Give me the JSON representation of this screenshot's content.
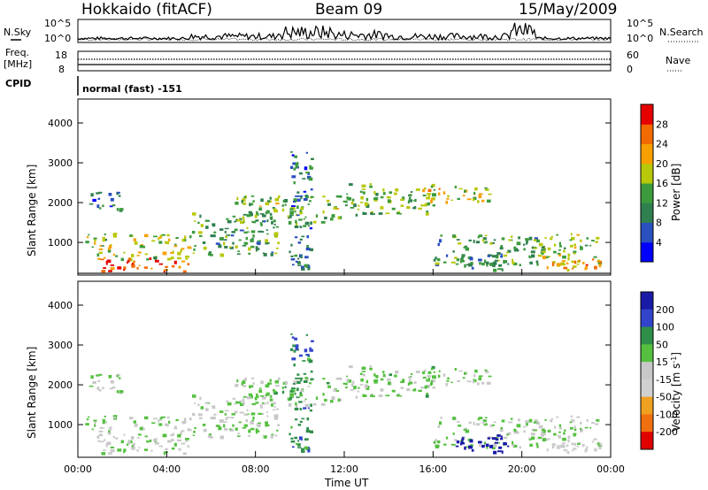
{
  "header": {
    "station": "Hokkaido (fitACF)",
    "beam": "Beam 09",
    "date": "15/May/2009"
  },
  "noise_panel": {
    "left_label": "N.Sky",
    "right_label": "N.Search",
    "left_ticks": [
      "10^5",
      "10^0"
    ],
    "right_ticks": [
      "10^5",
      "10^0"
    ]
  },
  "freq_panel": {
    "left_label_1": "Freq.",
    "left_label_2": "[MHz]",
    "left_ticks": [
      "18",
      "8"
    ],
    "right_ticks": [
      "60",
      "0"
    ],
    "right_label": "Nave"
  },
  "cpid_panel": {
    "label": "CPID",
    "mode": "normal (fast) -151"
  },
  "time_axis": {
    "label": "Time UT",
    "ticks": [
      "00:00",
      "04:00",
      "08:00",
      "12:00",
      "16:00",
      "20:00",
      "00:00"
    ]
  },
  "range_axis": {
    "label": "Slant Range [km]",
    "ticks": [
      "1000",
      "2000",
      "3000",
      "4000"
    ]
  },
  "power_colorbar": {
    "label": "Power [dB]",
    "ticks": [
      "4",
      "8",
      "12",
      "16",
      "20",
      "24",
      "28"
    ],
    "colors": [
      "#0000ff",
      "#2a4fbf",
      "#2f7f4f",
      "#3c9b3c",
      "#b8c80a",
      "#f7a000",
      "#f26a00",
      "#e60000"
    ]
  },
  "velocity_colorbar": {
    "label": "Velocity [m s",
    "label_sup": "-1",
    "label_end": "]",
    "ticks": [
      "200",
      "100",
      "50",
      "15",
      "-15",
      "-50",
      "-100",
      "-200"
    ],
    "colors": [
      "#1a1aa8",
      "#3344cc",
      "#2f8f4a",
      "#55c040",
      "#c8c8c8",
      "#d0d0d0",
      "#f0a020",
      "#f07010",
      "#e00000"
    ]
  },
  "chart_data": {
    "type": "heatmap",
    "x": {
      "range": [
        "00:00",
        "24:00"
      ],
      "unit": "UT"
    },
    "y": {
      "range": [
        180,
        4600
      ],
      "unit": "km"
    },
    "power_range_db": [
      0,
      30
    ],
    "velocity_range_ms": [
      -250,
      250
    ],
    "echo_regions": [
      {
        "t0": 0.3,
        "t1": 5.0,
        "r0": 600,
        "r1": 1250,
        "power": 16,
        "velocity": -5
      },
      {
        "t0": 1.0,
        "t1": 5.0,
        "r0": 300,
        "r1": 650,
        "power": 26,
        "velocity": -5
      },
      {
        "t0": 5.0,
        "t1": 9.0,
        "r0": 700,
        "r1": 1800,
        "power": 12,
        "velocity": 0
      },
      {
        "t0": 7.0,
        "t1": 12.0,
        "r0": 1500,
        "r1": 2200,
        "power": 14,
        "velocity": 5
      },
      {
        "t0": 12.0,
        "t1": 16.0,
        "r0": 1700,
        "r1": 2500,
        "power": 14,
        "velocity": 5
      },
      {
        "t0": 15.5,
        "t1": 18.5,
        "r0": 1950,
        "r1": 2450,
        "power": 18,
        "velocity": 0
      },
      {
        "t0": 16.0,
        "t1": 21.0,
        "r0": 450,
        "r1": 1200,
        "power": 12,
        "velocity": 0
      },
      {
        "t0": 17.0,
        "t1": 19.5,
        "r0": 300,
        "r1": 800,
        "power": 10,
        "velocity": 180
      },
      {
        "t0": 20.5,
        "t1": 23.5,
        "r0": 450,
        "r1": 1250,
        "power": 16,
        "velocity": -5
      },
      {
        "t0": 21.0,
        "t1": 23.5,
        "r0": 300,
        "r1": 600,
        "power": 22,
        "velocity": -40
      },
      {
        "t0": 9.5,
        "t1": 10.5,
        "r0": 300,
        "r1": 3300,
        "power": 8,
        "velocity": 60
      },
      {
        "t0": 0.5,
        "t1": 2.0,
        "r0": 1800,
        "r1": 2300,
        "power": 8,
        "velocity": 0
      }
    ]
  }
}
